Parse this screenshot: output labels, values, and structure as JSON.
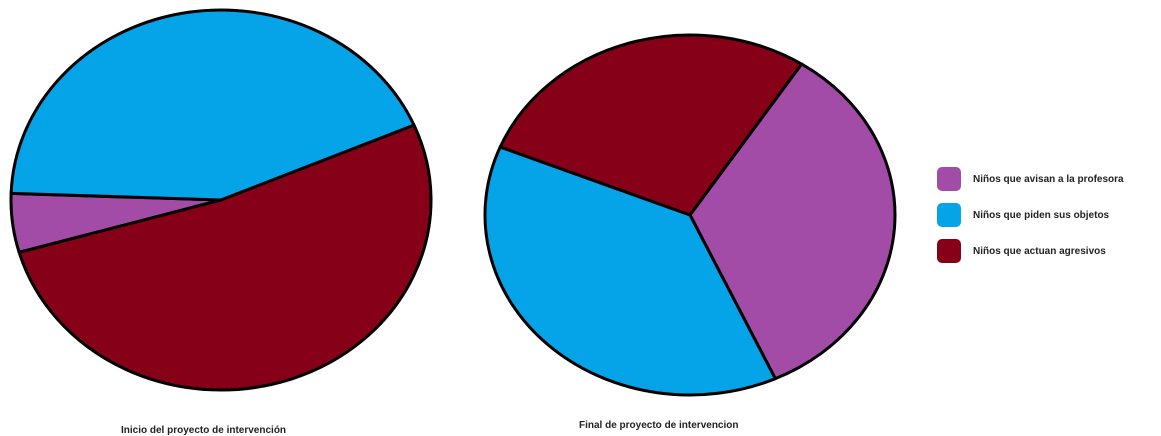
{
  "chart_data": [
    {
      "type": "pie",
      "title": "Inicio del proyecto de intervención",
      "slices": [
        {
          "label": "Niños que avisan a la profesora",
          "value": 5,
          "color": "#a24ca7"
        },
        {
          "label": "Niños que piden sus objetos",
          "value": 43,
          "color": "#05a3e8"
        },
        {
          "label": "Niños que actuan agresivos",
          "value": 52,
          "color": "#860018"
        }
      ]
    },
    {
      "type": "pie",
      "title": "Final de proyecto de intervencion",
      "slices": [
        {
          "label": "Niños que avisan a la profesora",
          "value": 34,
          "color": "#a24ca7"
        },
        {
          "label": "Niños que piden sus objetos",
          "value": 38,
          "color": "#05a3e8"
        },
        {
          "label": "Niños que actuan agresivos",
          "value": 28,
          "color": "#860018"
        }
      ]
    }
  ],
  "legend": {
    "placement": "right",
    "items": [
      {
        "label": "Niños que avisan a la profesora",
        "color": "#a24ca7"
      },
      {
        "label": "Niños que piden sus objetos",
        "color": "#05a3e8"
      },
      {
        "label": "Niños que actuan agresivos",
        "color": "#860018"
      }
    ]
  }
}
